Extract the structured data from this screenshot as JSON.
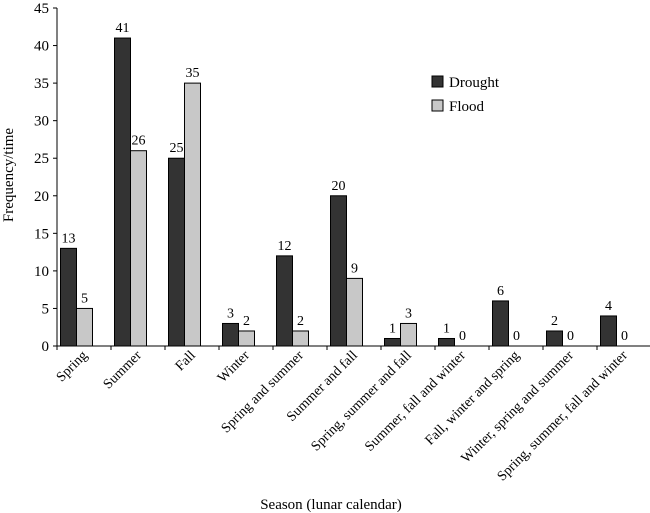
{
  "chart_data": {
    "type": "bar",
    "title": "",
    "xlabel": "Season (lunar calendar)",
    "ylabel": "Frequency/time",
    "ylim": [
      0,
      45
    ],
    "yticks": [
      0,
      5,
      10,
      15,
      20,
      25,
      30,
      35,
      40,
      45
    ],
    "grid": false,
    "legend": "top-right",
    "categories": [
      "Spring",
      "Summer",
      "Fall",
      "Winter",
      "Spring and summer",
      "Summer and fall",
      "Spring, summer and fall",
      "Summer, fall and winter",
      "Fall, winter and spring",
      "Winter, spring and summer",
      "Spring, summer, fall and winter"
    ],
    "series": [
      {
        "name": "Drought",
        "color": "#333333",
        "values": [
          13,
          41,
          25,
          3,
          12,
          20,
          1,
          1,
          6,
          2,
          4
        ]
      },
      {
        "name": "Flood",
        "color": "#c8c8c8",
        "values": [
          5,
          26,
          35,
          2,
          2,
          9,
          3,
          0,
          0,
          0,
          0
        ]
      }
    ]
  }
}
